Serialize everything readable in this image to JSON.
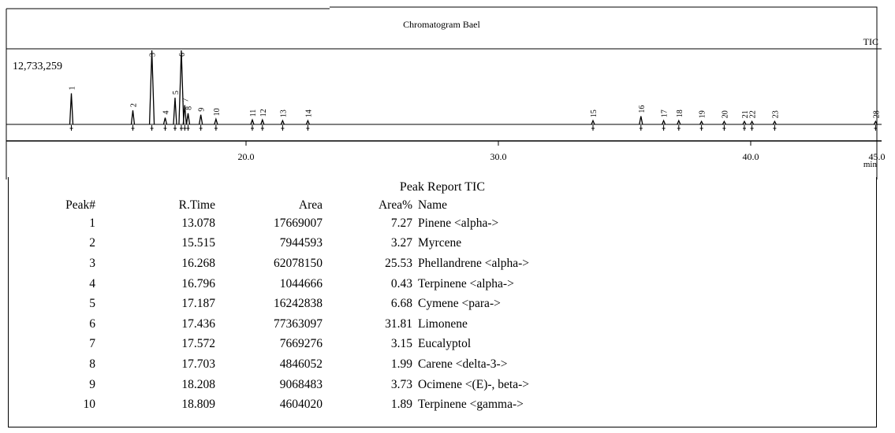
{
  "chart_data": {
    "type": "line",
    "title": "Chromatogram Bael",
    "trace_label": "TIC",
    "y_max_label": "12,733,259",
    "xlim": [
      10.5,
      45.0
    ],
    "x_unit": "min",
    "x_ticks": [
      {
        "value": 20.0,
        "label": "20.0"
      },
      {
        "value": 30.0,
        "label": "30.0"
      },
      {
        "value": 40.0,
        "label": "40.0"
      },
      {
        "value": 45.0,
        "label": "45.0"
      }
    ],
    "peaks": [
      {
        "label": "1",
        "rt": 13.078,
        "height": 0.42
      },
      {
        "label": "2",
        "rt": 15.515,
        "height": 0.19
      },
      {
        "label": "3",
        "rt": 16.268,
        "height": 1.0
      },
      {
        "label": "4",
        "rt": 16.796,
        "height": 0.09
      },
      {
        "label": "5",
        "rt": 17.187,
        "height": 0.36
      },
      {
        "label": "6",
        "rt": 17.436,
        "height": 1.0
      },
      {
        "label": "7",
        "rt": 17.572,
        "height": 0.26
      },
      {
        "label": "8",
        "rt": 17.703,
        "height": 0.15
      },
      {
        "label": "9",
        "rt": 18.208,
        "height": 0.13
      },
      {
        "label": "10",
        "rt": 18.809,
        "height": 0.07
      },
      {
        "label": "11",
        "rt": 20.25,
        "height": 0.06
      },
      {
        "label": "12",
        "rt": 20.65,
        "height": 0.06
      },
      {
        "label": "13",
        "rt": 21.45,
        "height": 0.05
      },
      {
        "label": "14",
        "rt": 22.45,
        "height": 0.05
      },
      {
        "label": "15",
        "rt": 33.75,
        "height": 0.05
      },
      {
        "label": "16",
        "rt": 35.65,
        "height": 0.11
      },
      {
        "label": "17",
        "rt": 36.55,
        "height": 0.05
      },
      {
        "label": "18",
        "rt": 37.15,
        "height": 0.05
      },
      {
        "label": "19",
        "rt": 38.05,
        "height": 0.04
      },
      {
        "label": "20",
        "rt": 38.95,
        "height": 0.04
      },
      {
        "label": "21",
        "rt": 39.75,
        "height": 0.04
      },
      {
        "label": "22",
        "rt": 40.05,
        "height": 0.04
      },
      {
        "label": "23",
        "rt": 40.95,
        "height": 0.04
      },
      {
        "label": "28",
        "rt": 44.95,
        "height": 0.04
      }
    ]
  },
  "report": {
    "title": "Peak Report TIC",
    "columns": [
      "Peak#",
      "R.Time",
      "Area",
      "Area%",
      "Name"
    ],
    "rows": [
      [
        "1",
        "13.078",
        "17669007",
        "7.27",
        "Pinene <alpha->"
      ],
      [
        "2",
        "15.515",
        "7944593",
        "3.27",
        "Myrcene"
      ],
      [
        "3",
        "16.268",
        "62078150",
        "25.53",
        "Phellandrene <alpha->"
      ],
      [
        "4",
        "16.796",
        "1044666",
        "0.43",
        "Terpinene <alpha->"
      ],
      [
        "5",
        "17.187",
        "16242838",
        "6.68",
        "Cymene <para->"
      ],
      [
        "6",
        "17.436",
        "77363097",
        "31.81",
        "Limonene"
      ],
      [
        "7",
        "17.572",
        "7669276",
        "3.15",
        "Eucalyptol"
      ],
      [
        "8",
        "17.703",
        "4846052",
        "1.99",
        "Carene <delta-3->"
      ],
      [
        "9",
        "18.208",
        "9068483",
        "3.73",
        "Ocimene <(E)-, beta->"
      ],
      [
        "10",
        "18.809",
        "4604020",
        "1.89",
        "Terpinene <gamma->"
      ]
    ]
  }
}
